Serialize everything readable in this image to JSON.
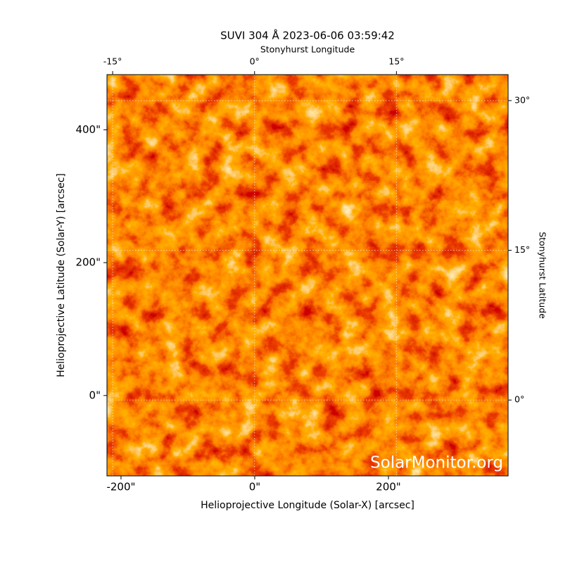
{
  "chart_data": {
    "type": "image",
    "title": "SUVI 304 Å 2023-06-06 03:59:42",
    "xlabel": "Helioprojective Longitude (Solar-X) [arcsec]",
    "ylabel": "Helioprojective Latitude (Solar-Y) [arcsec]",
    "x2label": "Stonyhurst Longitude",
    "y2label": "Stonyhurst Latitude",
    "watermark": "SolarMonitor.org",
    "xlim": [
      -221,
      379
    ],
    "ylim": [
      -121,
      483
    ],
    "xticks": [
      {
        "value": -200,
        "label": "-200\""
      },
      {
        "value": 0,
        "label": "0\""
      },
      {
        "value": 200,
        "label": "200\""
      }
    ],
    "yticks": [
      {
        "value": 0,
        "label": "0\""
      },
      {
        "value": 200,
        "label": "200\""
      },
      {
        "value": 400,
        "label": "400\""
      }
    ],
    "x2lim": [
      -15.6,
      26.8
    ],
    "x2ticks": [
      {
        "value": -15,
        "label": "-15°"
      },
      {
        "value": 0,
        "label": "0°"
      },
      {
        "value": 15,
        "label": "15°"
      }
    ],
    "y2lim": [
      -7.6,
      32.6
    ],
    "y2ticks": [
      {
        "value": 0,
        "label": "0°"
      },
      {
        "value": 15,
        "label": "15°"
      },
      {
        "value": 30,
        "label": "30°"
      }
    ],
    "grid": true
  }
}
